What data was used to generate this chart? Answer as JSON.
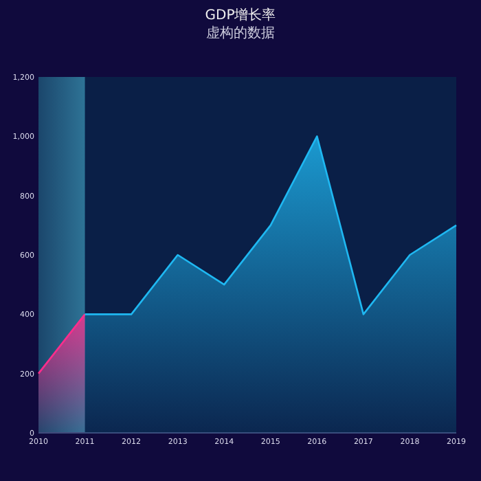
{
  "chart_data": {
    "type": "area",
    "title": "GDP增长率",
    "subtitle": "虚构的数据",
    "xlim": [
      2010,
      2019
    ],
    "xticks": [
      2010,
      2011,
      2012,
      2013,
      2014,
      2015,
      2016,
      2017,
      2018,
      2019
    ],
    "ylim": [
      0,
      1200
    ],
    "yticks": [
      0,
      200,
      400,
      600,
      800,
      {
        "value": 1000,
        "label": "1,000"
      },
      {
        "value": 1200,
        "label": "1,200"
      }
    ],
    "grid": false,
    "bands": [
      {
        "axis": "x",
        "from": 2010,
        "to": 2011,
        "color": "#3a8fb0"
      }
    ],
    "series": [
      {
        "color": "#ff2d8c",
        "x": [
          2010,
          2011
        ],
        "values": [
          200,
          400
        ]
      },
      {
        "color": "#1fb8f2",
        "x": [
          2011,
          2012,
          2013,
          2014,
          2015,
          2016,
          2017,
          2018,
          2019
        ],
        "values": [
          400,
          400,
          600,
          500,
          700,
          1000,
          400,
          600,
          700
        ]
      }
    ]
  }
}
